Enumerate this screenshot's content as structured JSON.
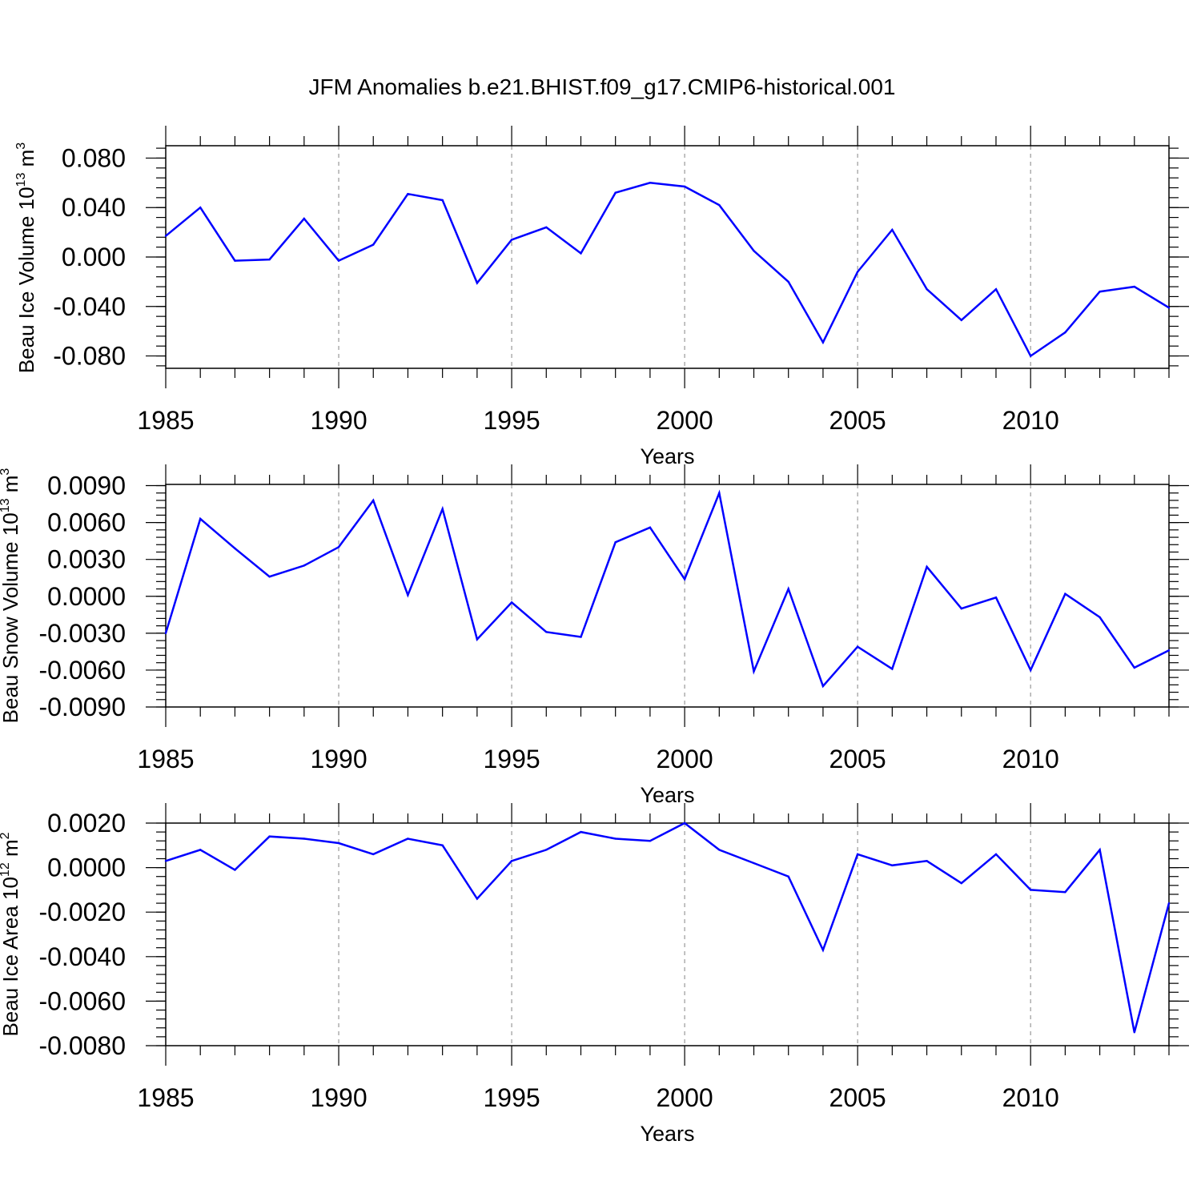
{
  "title": "JFM Anomalies b.e21.BHIST.f09_g17.CMIP6-historical.001",
  "series_color": "#0000ff",
  "chart_data": [
    {
      "type": "line",
      "ylabel": "Beau Ice Volume 10",
      "ylabel_exp": "13",
      "ylabel_unit": " m",
      "ylabel_unit_exp": "3",
      "xlabel": "Years",
      "xlim": [
        1985,
        2014
      ],
      "ylim": [
        -0.09,
        0.09
      ],
      "yticks": [
        -0.08,
        -0.04,
        0.0,
        0.04,
        0.08
      ],
      "ytick_labels": [
        "-0.080",
        "-0.040",
        "0.000",
        "0.040",
        "0.080"
      ],
      "yminor_step": 0.008,
      "xticks": [
        1985,
        1990,
        1995,
        2000,
        2005,
        2010
      ],
      "xtick_labels": [
        "1985",
        "1990",
        "1995",
        "2000",
        "2005",
        "2010"
      ],
      "x": [
        1985,
        1986,
        1987,
        1988,
        1989,
        1990,
        1991,
        1992,
        1993,
        1994,
        1995,
        1996,
        1997,
        1998,
        1999,
        2000,
        2001,
        2002,
        2003,
        2004,
        2005,
        2006,
        2007,
        2008,
        2009,
        2010,
        2011,
        2012,
        2013,
        2014
      ],
      "values": [
        0.017,
        0.04,
        -0.003,
        -0.002,
        0.031,
        -0.003,
        0.01,
        0.051,
        0.046,
        -0.021,
        0.014,
        0.024,
        0.003,
        0.052,
        0.06,
        0.057,
        0.042,
        0.005,
        -0.02,
        -0.069,
        -0.012,
        0.022,
        -0.026,
        -0.051,
        -0.026,
        -0.08,
        -0.061,
        -0.028,
        -0.024,
        -0.041
      ]
    },
    {
      "type": "line",
      "ylabel": "Beau Snow Volume 10",
      "ylabel_exp": "13",
      "ylabel_unit": " m",
      "ylabel_unit_exp": "3",
      "xlabel": "Years",
      "xlim": [
        1985,
        2014
      ],
      "ylim": [
        -0.009,
        0.0091
      ],
      "yticks": [
        -0.009,
        -0.006,
        -0.003,
        0.0,
        0.003,
        0.006,
        0.009
      ],
      "ytick_labels": [
        "-0.0090",
        "-0.0060",
        "-0.0030",
        "0.0000",
        "0.0030",
        "0.0060",
        "0.0090"
      ],
      "yminor_step": 0.0006,
      "xticks": [
        1985,
        1990,
        1995,
        2000,
        2005,
        2010
      ],
      "xtick_labels": [
        "1985",
        "1990",
        "1995",
        "2000",
        "2005",
        "2010"
      ],
      "x": [
        1985,
        1986,
        1987,
        1988,
        1989,
        1990,
        1991,
        1992,
        1993,
        1994,
        1995,
        1996,
        1997,
        1998,
        1999,
        2000,
        2001,
        2002,
        2003,
        2004,
        2005,
        2006,
        2007,
        2008,
        2009,
        2010,
        2011,
        2012,
        2013,
        2014
      ],
      "values": [
        -0.003,
        0.0063,
        0.0039,
        0.0016,
        0.0025,
        0.004,
        0.0078,
        0.0001,
        0.0071,
        -0.0035,
        -0.0005,
        -0.0029,
        -0.0033,
        0.0044,
        0.0056,
        0.0014,
        0.0084,
        -0.0061,
        0.0006,
        -0.0073,
        -0.0041,
        -0.0059,
        0.0024,
        -0.001,
        -0.0001,
        -0.006,
        0.0002,
        -0.0017,
        -0.0058,
        -0.0044
      ]
    },
    {
      "type": "line",
      "ylabel": "Beau Ice Area 10",
      "ylabel_exp": "12",
      "ylabel_unit": " m",
      "ylabel_unit_exp": "2",
      "xlabel": "Years",
      "xlim": [
        1985,
        2014
      ],
      "ylim": [
        -0.008,
        0.002
      ],
      "yticks": [
        -0.008,
        -0.006,
        -0.004,
        -0.002,
        0.0,
        0.002
      ],
      "ytick_labels": [
        "-0.0080",
        "-0.0060",
        "-0.0040",
        "-0.0020",
        "0.0000",
        "0.0020"
      ],
      "yminor_step": 0.0004,
      "xticks": [
        1985,
        1990,
        1995,
        2000,
        2005,
        2010
      ],
      "xtick_labels": [
        "1985",
        "1990",
        "1995",
        "2000",
        "2005",
        "2010"
      ],
      "x": [
        1985,
        1986,
        1987,
        1988,
        1989,
        1990,
        1991,
        1992,
        1993,
        1994,
        1995,
        1996,
        1997,
        1998,
        1999,
        2000,
        2001,
        2002,
        2003,
        2004,
        2005,
        2006,
        2007,
        2008,
        2009,
        2010,
        2011,
        2012,
        2013,
        2014
      ],
      "values": [
        0.0003,
        0.0008,
        -0.0001,
        0.0014,
        0.0013,
        0.0011,
        0.0006,
        0.0013,
        0.001,
        -0.0014,
        0.0003,
        0.0008,
        0.0016,
        0.0013,
        0.0012,
        0.002,
        0.0008,
        0.0002,
        -0.0004,
        -0.0037,
        0.0006,
        0.0001,
        0.0003,
        -0.0007,
        0.0006,
        -0.001,
        -0.0011,
        0.0008,
        -0.0074,
        -0.0016
      ]
    }
  ]
}
